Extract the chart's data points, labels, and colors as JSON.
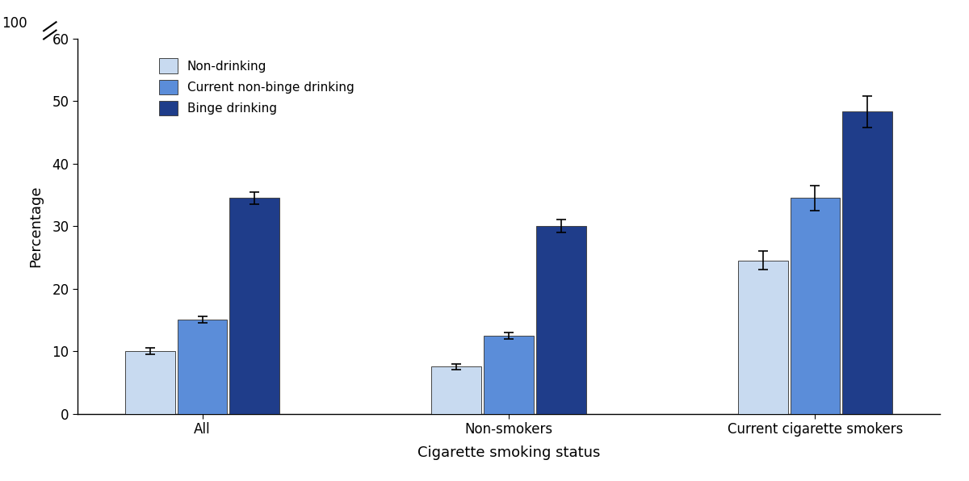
{
  "categories": [
    "All",
    "Non-smokers",
    "Current cigarette smokers"
  ],
  "series": [
    {
      "label": "Non-drinking",
      "color": "#c8daf0",
      "values": [
        10.0,
        7.5,
        24.5
      ],
      "errors": [
        0.5,
        0.5,
        1.5
      ]
    },
    {
      "label": "Current non-binge drinking",
      "color": "#5b8dd9",
      "values": [
        15.0,
        12.5,
        34.5
      ],
      "errors": [
        0.5,
        0.5,
        2.0
      ]
    },
    {
      "label": "Binge drinking",
      "color": "#1f3d8a",
      "values": [
        34.5,
        30.0,
        48.3
      ],
      "errors": [
        1.0,
        1.0,
        2.5
      ]
    }
  ],
  "xlabel": "Cigarette smoking status",
  "ylabel": "Percentage",
  "ylim": [
    0,
    60
  ],
  "yticks": [
    0,
    10,
    20,
    30,
    40,
    50,
    60
  ],
  "ytick_labels": [
    "0",
    "10",
    "20",
    "30",
    "40",
    "50",
    "60"
  ],
  "y_top_label": "100",
  "bar_width": 0.22,
  "legend_loc": "upper left",
  "edge_color": "#444444",
  "error_color": "black",
  "background_color": "#ffffff"
}
